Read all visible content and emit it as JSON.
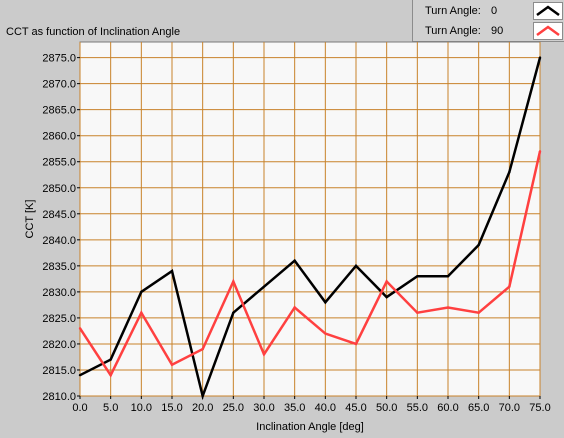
{
  "chart_data": {
    "type": "line",
    "title": "CCT as function of Inclination Angle",
    "xlabel": "Inclination Angle [deg]",
    "ylabel": "CCT [K]",
    "xlim": [
      0,
      75
    ],
    "ylim": [
      2810,
      2878
    ],
    "grid": true,
    "legend_position": "top-right",
    "x": [
      0,
      5,
      10,
      15,
      20,
      25,
      30,
      35,
      40,
      45,
      50,
      55,
      60,
      65,
      70,
      75
    ],
    "x_tick_labels": [
      "0.0",
      "5.0",
      "10.0",
      "15.0",
      "20.0",
      "25.0",
      "30.0",
      "35.0",
      "40.0",
      "45.0",
      "50.0",
      "55.0",
      "60.0",
      "65.0",
      "70.0",
      "75.0"
    ],
    "y_ticks": [
      2810,
      2815,
      2820,
      2825,
      2830,
      2835,
      2840,
      2845,
      2850,
      2855,
      2860,
      2865,
      2870,
      2875
    ],
    "y_tick_labels": [
      "2810.0",
      "2815.0",
      "2820.0",
      "2825.0",
      "2830.0",
      "2835.0",
      "2840.0",
      "2845.0",
      "2850.0",
      "2855.0",
      "2860.0",
      "2865.0",
      "2870.0",
      "2875.0"
    ],
    "series": [
      {
        "name": "Turn Angle: 0",
        "legend_label": "Turn Angle:",
        "legend_value": "0",
        "color": "#000000",
        "values": [
          2814,
          2817,
          2830,
          2834,
          2810,
          2826,
          2831,
          2836,
          2828,
          2835,
          2829,
          2833,
          2833,
          2839,
          2853,
          2875
        ]
      },
      {
        "name": "Turn Angle: 90",
        "legend_label": "Turn Angle:",
        "legend_value": "90",
        "color": "#ff4040",
        "values": [
          2823,
          2814,
          2826,
          2816,
          2819,
          2832,
          2818,
          2827,
          2822,
          2820,
          2832,
          2826,
          2827,
          2826,
          2831,
          2857
        ]
      }
    ]
  },
  "colors": {
    "plot_background": "#f8f8f8",
    "grid": "#c8822a",
    "frame": "#cbcbcb"
  }
}
